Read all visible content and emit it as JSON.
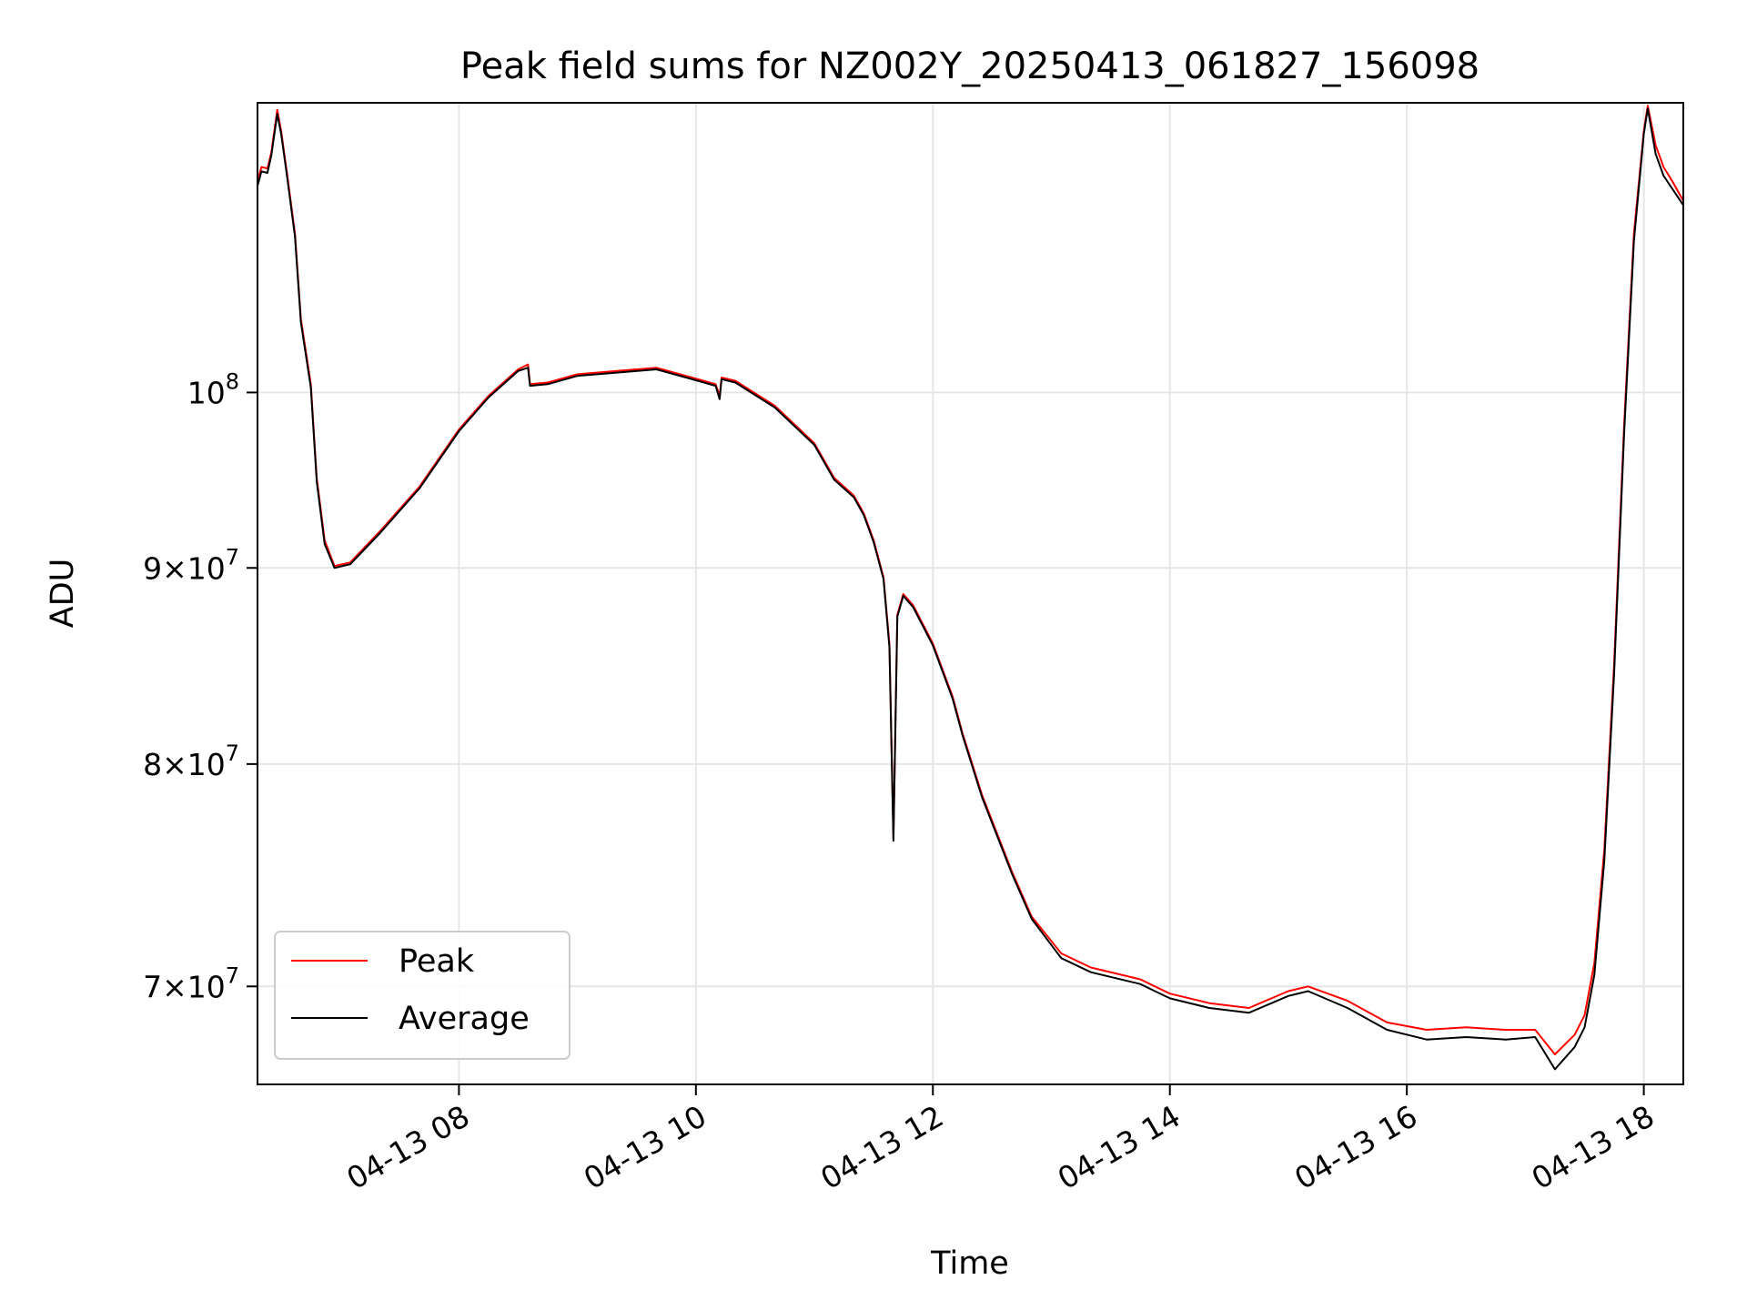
{
  "chart_data": {
    "type": "line",
    "title": "Peak field sums for NZ002Y_20250413_061827_156098",
    "xlabel": "Time",
    "ylabel": "ADU",
    "y_scale": "log",
    "grid": true,
    "legend_position": "lower-left",
    "x_range": [
      "2025-04-13 06:18",
      "2025-04-13 18:20"
    ],
    "y_range": [
      66000000,
      119000000
    ],
    "x_ticks": [
      {
        "value": "2025-04-13 08:00",
        "label": "04-13 08"
      },
      {
        "value": "2025-04-13 10:00",
        "label": "04-13 10"
      },
      {
        "value": "2025-04-13 12:00",
        "label": "04-13 12"
      },
      {
        "value": "2025-04-13 14:00",
        "label": "04-13 14"
      },
      {
        "value": "2025-04-13 16:00",
        "label": "04-13 16"
      },
      {
        "value": "2025-04-13 18:00",
        "label": "04-13 18"
      }
    ],
    "y_ticks": [
      {
        "value": 70000000,
        "mantissa": "7",
        "exponent": "7"
      },
      {
        "value": 80000000,
        "mantissa": "8",
        "exponent": "7"
      },
      {
        "value": 90000000,
        "mantissa": "9",
        "exponent": "7"
      },
      {
        "value": 100000000,
        "mantissa": "",
        "exponent": "8"
      }
    ],
    "series": [
      {
        "name": "Peak",
        "color": "#ff0000",
        "points": [
          [
            "2025-04-13 06:18",
            113500000
          ],
          [
            "2025-04-13 06:20",
            114500000
          ],
          [
            "2025-04-13 06:23",
            114400000
          ],
          [
            "2025-04-13 06:25",
            115500000
          ],
          [
            "2025-04-13 06:28",
            118500000
          ],
          [
            "2025-04-13 06:30",
            117000000
          ],
          [
            "2025-04-13 06:33",
            114000000
          ],
          [
            "2025-04-13 06:37",
            110000000
          ],
          [
            "2025-04-13 06:40",
            104500000
          ],
          [
            "2025-04-13 06:45",
            100500000
          ],
          [
            "2025-04-13 06:48",
            95000000
          ],
          [
            "2025-04-13 06:52",
            91500000
          ],
          [
            "2025-04-13 06:57",
            90100000
          ],
          [
            "2025-04-13 07:05",
            90300000
          ],
          [
            "2025-04-13 07:20",
            92000000
          ],
          [
            "2025-04-13 07:40",
            94500000
          ],
          [
            "2025-04-13 08:00",
            97800000
          ],
          [
            "2025-04-13 08:15",
            99800000
          ],
          [
            "2025-04-13 08:30",
            101400000
          ],
          [
            "2025-04-13 08:35",
            101700000
          ],
          [
            "2025-04-13 08:36",
            100500000
          ],
          [
            "2025-04-13 08:45",
            100600000
          ],
          [
            "2025-04-13 09:00",
            101100000
          ],
          [
            "2025-04-13 09:20",
            101300000
          ],
          [
            "2025-04-13 09:40",
            101500000
          ],
          [
            "2025-04-13 09:55",
            101000000
          ],
          [
            "2025-04-13 10:10",
            100500000
          ],
          [
            "2025-04-13 10:12",
            99800000
          ],
          [
            "2025-04-13 10:13",
            100900000
          ],
          [
            "2025-04-13 10:20",
            100700000
          ],
          [
            "2025-04-13 10:40",
            99200000
          ],
          [
            "2025-04-13 11:00",
            97000000
          ],
          [
            "2025-04-13 11:10",
            95000000
          ],
          [
            "2025-04-13 11:20",
            94000000
          ],
          [
            "2025-04-13 11:25",
            93000000
          ],
          [
            "2025-04-13 11:30",
            91500000
          ],
          [
            "2025-04-13 11:35",
            89500000
          ],
          [
            "2025-04-13 11:38",
            86000000
          ],
          [
            "2025-04-13 11:40",
            76500000
          ],
          [
            "2025-04-13 11:42",
            87500000
          ],
          [
            "2025-04-13 11:45",
            88600000
          ],
          [
            "2025-04-13 11:50",
            88000000
          ],
          [
            "2025-04-13 12:00",
            86000000
          ],
          [
            "2025-04-13 12:10",
            83300000
          ],
          [
            "2025-04-13 12:15",
            81500000
          ],
          [
            "2025-04-13 12:25",
            78500000
          ],
          [
            "2025-04-13 12:40",
            75000000
          ],
          [
            "2025-04-13 12:50",
            73000000
          ],
          [
            "2025-04-13 13:05",
            71400000
          ],
          [
            "2025-04-13 13:20",
            70800000
          ],
          [
            "2025-04-13 13:45",
            70300000
          ],
          [
            "2025-04-13 14:00",
            69700000
          ],
          [
            "2025-04-13 14:20",
            69300000
          ],
          [
            "2025-04-13 14:40",
            69100000
          ],
          [
            "2025-04-13 15:00",
            69800000
          ],
          [
            "2025-04-13 15:10",
            70000000
          ],
          [
            "2025-04-13 15:30",
            69400000
          ],
          [
            "2025-04-13 15:50",
            68500000
          ],
          [
            "2025-04-13 16:10",
            68200000
          ],
          [
            "2025-04-13 16:30",
            68300000
          ],
          [
            "2025-04-13 16:50",
            68200000
          ],
          [
            "2025-04-13 17:05",
            68200000
          ],
          [
            "2025-04-13 17:15",
            67200000
          ],
          [
            "2025-04-13 17:25",
            68000000
          ],
          [
            "2025-04-13 17:30",
            68800000
          ],
          [
            "2025-04-13 17:35",
            71000000
          ],
          [
            "2025-04-13 17:40",
            76000000
          ],
          [
            "2025-04-13 17:45",
            85000000
          ],
          [
            "2025-04-13 17:50",
            98000000
          ],
          [
            "2025-04-13 17:55",
            110000000
          ],
          [
            "2025-04-13 18:00",
            117000000
          ],
          [
            "2025-04-13 18:02",
            118800000
          ],
          [
            "2025-04-13 18:06",
            116000000
          ],
          [
            "2025-04-13 18:10",
            114500000
          ],
          [
            "2025-04-13 18:15",
            113400000
          ],
          [
            "2025-04-13 18:20",
            112200000
          ]
        ]
      },
      {
        "name": "Average",
        "color": "#000000",
        "points": [
          [
            "2025-04-13 06:18",
            113200000
          ],
          [
            "2025-04-13 06:20",
            114200000
          ],
          [
            "2025-04-13 06:23",
            114100000
          ],
          [
            "2025-04-13 06:25",
            115300000
          ],
          [
            "2025-04-13 06:28",
            118200000
          ],
          [
            "2025-04-13 06:30",
            116800000
          ],
          [
            "2025-04-13 06:33",
            113800000
          ],
          [
            "2025-04-13 06:37",
            109800000
          ],
          [
            "2025-04-13 06:40",
            104300000
          ],
          [
            "2025-04-13 06:45",
            100300000
          ],
          [
            "2025-04-13 06:48",
            94800000
          ],
          [
            "2025-04-13 06:52",
            91300000
          ],
          [
            "2025-04-13 06:57",
            90000000
          ],
          [
            "2025-04-13 07:05",
            90200000
          ],
          [
            "2025-04-13 07:20",
            91900000
          ],
          [
            "2025-04-13 07:40",
            94400000
          ],
          [
            "2025-04-13 08:00",
            97700000
          ],
          [
            "2025-04-13 08:15",
            99700000
          ],
          [
            "2025-04-13 08:30",
            101300000
          ],
          [
            "2025-04-13 08:35",
            101500000
          ],
          [
            "2025-04-13 08:36",
            100400000
          ],
          [
            "2025-04-13 08:45",
            100500000
          ],
          [
            "2025-04-13 09:00",
            101000000
          ],
          [
            "2025-04-13 09:20",
            101200000
          ],
          [
            "2025-04-13 09:40",
            101400000
          ],
          [
            "2025-04-13 09:55",
            100900000
          ],
          [
            "2025-04-13 10:10",
            100400000
          ],
          [
            "2025-04-13 10:12",
            99600000
          ],
          [
            "2025-04-13 10:13",
            100800000
          ],
          [
            "2025-04-13 10:20",
            100600000
          ],
          [
            "2025-04-13 10:40",
            99100000
          ],
          [
            "2025-04-13 11:00",
            96900000
          ],
          [
            "2025-04-13 11:10",
            94900000
          ],
          [
            "2025-04-13 11:20",
            93900000
          ],
          [
            "2025-04-13 11:25",
            92900000
          ],
          [
            "2025-04-13 11:30",
            91400000
          ],
          [
            "2025-04-13 11:35",
            89400000
          ],
          [
            "2025-04-13 11:38",
            85800000
          ],
          [
            "2025-04-13 11:40",
            76400000
          ],
          [
            "2025-04-13 11:42",
            87400000
          ],
          [
            "2025-04-13 11:45",
            88500000
          ],
          [
            "2025-04-13 11:50",
            87900000
          ],
          [
            "2025-04-13 12:00",
            85900000
          ],
          [
            "2025-04-13 12:10",
            83200000
          ],
          [
            "2025-04-13 12:15",
            81400000
          ],
          [
            "2025-04-13 12:25",
            78400000
          ],
          [
            "2025-04-13 12:40",
            74900000
          ],
          [
            "2025-04-13 12:50",
            72900000
          ],
          [
            "2025-04-13 13:05",
            71200000
          ],
          [
            "2025-04-13 13:20",
            70600000
          ],
          [
            "2025-04-13 13:45",
            70100000
          ],
          [
            "2025-04-13 14:00",
            69500000
          ],
          [
            "2025-04-13 14:20",
            69100000
          ],
          [
            "2025-04-13 14:40",
            68900000
          ],
          [
            "2025-04-13 15:00",
            69600000
          ],
          [
            "2025-04-13 15:10",
            69800000
          ],
          [
            "2025-04-13 15:30",
            69100000
          ],
          [
            "2025-04-13 15:50",
            68200000
          ],
          [
            "2025-04-13 16:10",
            67800000
          ],
          [
            "2025-04-13 16:30",
            67900000
          ],
          [
            "2025-04-13 16:50",
            67800000
          ],
          [
            "2025-04-13 17:05",
            67900000
          ],
          [
            "2025-04-13 17:15",
            66600000
          ],
          [
            "2025-04-13 17:25",
            67500000
          ],
          [
            "2025-04-13 17:30",
            68300000
          ],
          [
            "2025-04-13 17:35",
            70500000
          ],
          [
            "2025-04-13 17:40",
            75500000
          ],
          [
            "2025-04-13 17:45",
            84500000
          ],
          [
            "2025-04-13 17:50",
            97500000
          ],
          [
            "2025-04-13 17:55",
            109500000
          ],
          [
            "2025-04-13 18:00",
            116800000
          ],
          [
            "2025-04-13 18:02",
            118600000
          ],
          [
            "2025-04-13 18:06",
            115400000
          ],
          [
            "2025-04-13 18:10",
            113900000
          ],
          [
            "2025-04-13 18:15",
            112900000
          ],
          [
            "2025-04-13 18:20",
            111900000
          ]
        ]
      }
    ]
  }
}
